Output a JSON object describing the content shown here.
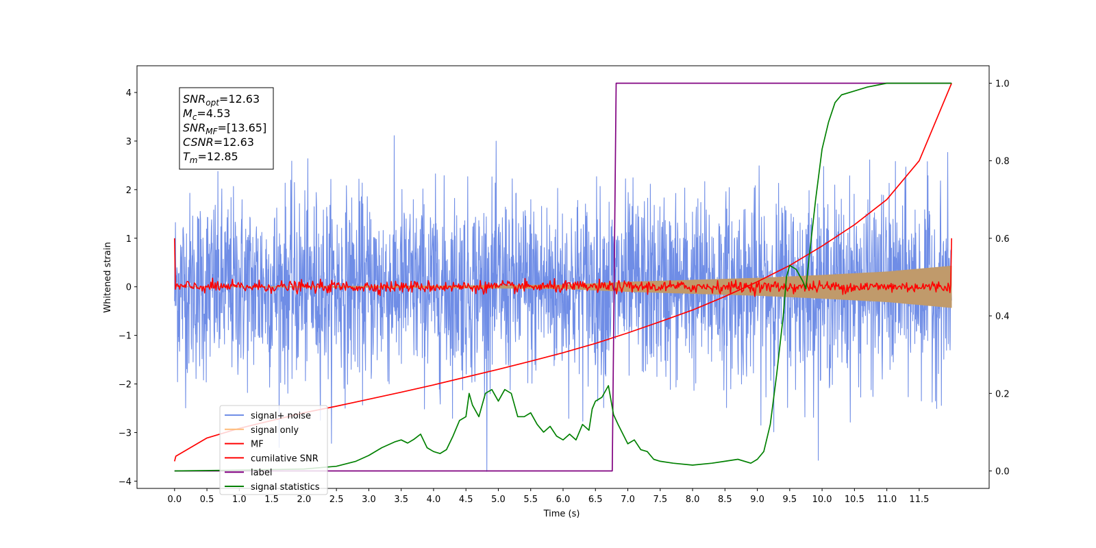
{
  "chart_data": {
    "type": "line",
    "xlabel": "Time (s)",
    "ylabel": "Whitened strain",
    "xlim": [
      -0.58,
      12.58
    ],
    "ylim": [
      -4.15,
      4.55
    ],
    "y2lim": [
      -0.045,
      1.045
    ],
    "xticks": [
      0.0,
      0.5,
      1.0,
      1.5,
      2.0,
      2.5,
      3.0,
      3.5,
      4.0,
      4.5,
      5.0,
      5.5,
      6.0,
      6.5,
      7.0,
      7.5,
      8.0,
      8.5,
      9.0,
      9.5,
      10.0,
      10.5,
      11.0,
      11.5
    ],
    "xtick_labels": [
      "0.0",
      "0.5",
      "1.0",
      "1.5",
      "2.0",
      "2.5",
      "3.0",
      "3.5",
      "4.0",
      "4.5",
      "5.0",
      "5.5",
      "6.0",
      "6.5",
      "7.0",
      "7.5",
      "8.0",
      "8.5",
      "9.0",
      "9.5",
      "10.0",
      "10.5",
      "11.0",
      "11.5"
    ],
    "yticks": [
      4,
      3,
      2,
      1,
      0,
      -1,
      -2,
      -3,
      -4
    ],
    "ytick_labels": [
      "4",
      "3",
      "2",
      "1",
      "0",
      "−1",
      "−2",
      "−3",
      "−4"
    ],
    "y2ticks": [
      1.0,
      0.8,
      0.6,
      0.4,
      0.2,
      0.0
    ],
    "y2tick_labels": [
      "1.0",
      "0.8",
      "0.6",
      "0.4",
      "0.2",
      "0.0"
    ],
    "grid": false,
    "legend_position": "lower-left",
    "legend": [
      {
        "label": "signal+ noise",
        "color": "#6F8DE6"
      },
      {
        "label": "signal only",
        "color": "#FFBB78"
      },
      {
        "label": "MF",
        "color": "#FF0000"
      },
      {
        "label": "cumilative SNR",
        "color": "#FF0000"
      },
      {
        "label": "label",
        "color": "#800080"
      },
      {
        "label": "signal statistics",
        "color": "#008000"
      }
    ],
    "annotation": [
      {
        "base": "SNR",
        "sub": "opt",
        "value": "=12.63"
      },
      {
        "base": "M",
        "sub": "c",
        "value": "=4.53"
      },
      {
        "base": "SNR",
        "sub": "MF",
        "value": "=[13.65]"
      },
      {
        "base": "CSNR",
        "sub": "",
        "value": "=12.63"
      },
      {
        "base": "T",
        "sub": "m",
        "value": "=12.85"
      }
    ],
    "series": [
      {
        "name": "signal+ noise",
        "axis": "left",
        "color": "#6F8DE6",
        "style": "noise",
        "x_range": [
          0.0,
          12.0
        ],
        "envelope": [
          2.6,
          3.8
        ]
      },
      {
        "name": "signal only",
        "axis": "left",
        "color": "#C09A6B",
        "style": "chirp",
        "x_range": [
          0.0,
          12.0
        ],
        "amplitude": [
          [
            0.0,
            0.0
          ],
          [
            4.0,
            0.02
          ],
          [
            6.0,
            0.04
          ],
          [
            7.0,
            0.1
          ],
          [
            8.0,
            0.14
          ],
          [
            9.0,
            0.18
          ],
          [
            10.0,
            0.24
          ],
          [
            11.0,
            0.31
          ],
          [
            12.0,
            0.43
          ]
        ]
      },
      {
        "name": "MF",
        "axis": "left",
        "color": "#FF0000",
        "style": "mf",
        "x_range": [
          0.0,
          12.0
        ],
        "start": 1.0,
        "end": 1.0,
        "noise": 0.06
      },
      {
        "name": "cumilative SNR",
        "axis": "right",
        "color": "#FF0000",
        "x": [
          0.0,
          0.02,
          0.5,
          1.0,
          1.5,
          2.0,
          2.5,
          3.0,
          3.5,
          4.0,
          4.5,
          5.0,
          5.5,
          6.0,
          6.5,
          7.0,
          7.5,
          8.0,
          8.5,
          9.0,
          9.5,
          10.0,
          10.5,
          11.0,
          11.5,
          12.0
        ],
        "y": [
          0.025,
          0.038,
          0.085,
          0.11,
          0.13,
          0.15,
          0.167,
          0.185,
          0.203,
          0.222,
          0.242,
          0.262,
          0.283,
          0.305,
          0.329,
          0.356,
          0.385,
          0.415,
          0.45,
          0.488,
          0.53,
          0.58,
          0.635,
          0.7,
          0.8,
          1.0
        ]
      },
      {
        "name": "label",
        "axis": "right",
        "color": "#800080",
        "x": [
          0.0,
          6.76,
          6.82,
          11.99
        ],
        "y": [
          0.0,
          0.0,
          1.0,
          1.0
        ]
      },
      {
        "name": "signal statistics",
        "axis": "right",
        "color": "#008000",
        "x": [
          0.0,
          1.0,
          2.0,
          2.5,
          2.8,
          3.0,
          3.2,
          3.4,
          3.5,
          3.6,
          3.7,
          3.8,
          3.9,
          4.0,
          4.1,
          4.2,
          4.3,
          4.4,
          4.5,
          4.55,
          4.6,
          4.7,
          4.8,
          4.9,
          5.0,
          5.1,
          5.2,
          5.3,
          5.4,
          5.5,
          5.6,
          5.7,
          5.8,
          5.9,
          6.0,
          6.1,
          6.2,
          6.3,
          6.4,
          6.45,
          6.5,
          6.6,
          6.7,
          6.78,
          6.85,
          7.0,
          7.1,
          7.2,
          7.3,
          7.4,
          7.5,
          7.7,
          8.0,
          8.3,
          8.5,
          8.7,
          8.9,
          9.0,
          9.1,
          9.2,
          9.3,
          9.4,
          9.45,
          9.5,
          9.6,
          9.7,
          9.75,
          9.8,
          9.9,
          10.0,
          10.1,
          10.2,
          10.3,
          10.5,
          10.7,
          11.0,
          11.2,
          11.5,
          12.0
        ],
        "y": [
          0.0,
          0.002,
          0.005,
          0.012,
          0.025,
          0.04,
          0.06,
          0.075,
          0.08,
          0.072,
          0.082,
          0.095,
          0.06,
          0.05,
          0.045,
          0.055,
          0.09,
          0.13,
          0.14,
          0.2,
          0.17,
          0.14,
          0.2,
          0.21,
          0.18,
          0.21,
          0.2,
          0.14,
          0.14,
          0.15,
          0.12,
          0.1,
          0.115,
          0.09,
          0.08,
          0.095,
          0.08,
          0.12,
          0.105,
          0.16,
          0.18,
          0.19,
          0.22,
          0.145,
          0.12,
          0.07,
          0.08,
          0.055,
          0.05,
          0.03,
          0.025,
          0.02,
          0.015,
          0.02,
          0.025,
          0.03,
          0.02,
          0.03,
          0.05,
          0.12,
          0.25,
          0.4,
          0.5,
          0.53,
          0.52,
          0.49,
          0.47,
          0.55,
          0.7,
          0.83,
          0.9,
          0.95,
          0.97,
          0.98,
          0.99,
          1.0,
          1.0,
          1.0,
          1.0
        ]
      }
    ]
  }
}
